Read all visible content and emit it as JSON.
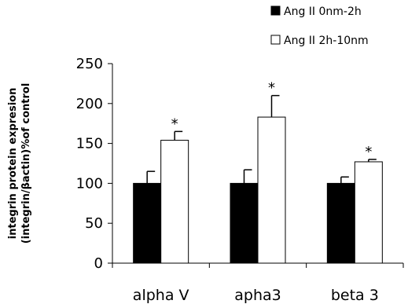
{
  "chart_data": {
    "type": "bar",
    "categories": [
      "alpha V",
      "apha3",
      "beta 3"
    ],
    "series": [
      {
        "name": "Ang II 0nm-2h",
        "values": [
          100,
          100,
          100
        ],
        "errors": [
          15,
          17,
          8
        ],
        "color": "#000000"
      },
      {
        "name": "Ang II 2h-10nm",
        "values": [
          154,
          183,
          127
        ],
        "errors": [
          11,
          27,
          3
        ],
        "color": "#ffffff"
      }
    ],
    "annotations": [
      "*",
      "*",
      "*"
    ],
    "ylabel_lines": [
      "integrin protein expresion",
      "(integrin/βactin)%of control"
    ],
    "yticks": [
      "0",
      "50",
      "100",
      "150",
      "200",
      "250"
    ],
    "ylim": [
      0,
      250
    ],
    "legend_position": "top-right",
    "grid": false
  }
}
